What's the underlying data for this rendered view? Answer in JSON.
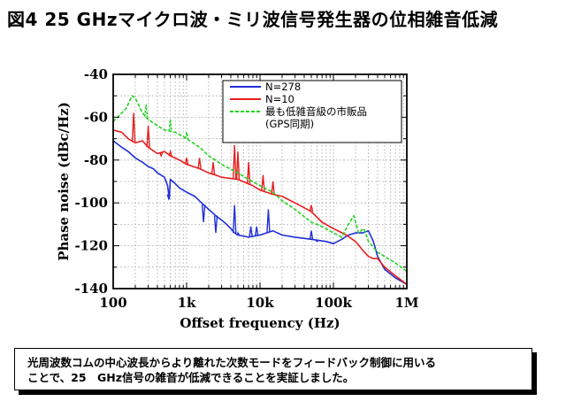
{
  "figure_title": "図4 25 GHzマイクロ波・ミリ波信号発生器の位相雑音低減",
  "caption": [
    "光周波数コムの中心波長からより離れた次数モードをフィードバック制御に用いる",
    "ことで、25　GHz信号の雑音が低減できることを実証しました。"
  ],
  "chart_data": {
    "type": "line",
    "xlabel": "Offset frequency (Hz)",
    "ylabel": "Phase noise (dBc/Hz)",
    "xscale": "log",
    "xlim": [
      100,
      1000000
    ],
    "ylim": [
      -140,
      -40
    ],
    "xticks": [
      100,
      1000,
      10000,
      100000,
      1000000
    ],
    "xtick_labels": [
      "100",
      "1k",
      "10k",
      "100k",
      "1M"
    ],
    "yticks": [
      -40,
      -60,
      -80,
      -100,
      -120,
      -140
    ],
    "ytick_labels": [
      "-40",
      "-60",
      "-80",
      "-100",
      "-120",
      "-140"
    ],
    "grid": true,
    "legend_position": "top-right",
    "series": [
      {
        "name": "N=278",
        "legend_lines": [
          "N=278"
        ],
        "color": "#1f2fd8",
        "dash": "solid",
        "points": [
          [
            100,
            -71
          ],
          [
            130,
            -74
          ],
          [
            160,
            -76
          ],
          [
            200,
            -79
          ],
          [
            250,
            -81
          ],
          [
            300,
            -83
          ],
          [
            350,
            -84
          ],
          [
            400,
            -86
          ],
          [
            500,
            -88
          ],
          [
            550,
            -92
          ],
          [
            580,
            -98
          ],
          [
            600,
            -89
          ],
          [
            700,
            -91
          ],
          [
            800,
            -93
          ],
          [
            1000,
            -95
          ],
          [
            1300,
            -97
          ],
          [
            1600,
            -100
          ],
          [
            2000,
            -103
          ],
          [
            2500,
            -106
          ],
          [
            3000,
            -108
          ],
          [
            3500,
            -110
          ],
          [
            4000,
            -112
          ],
          [
            4500,
            -114
          ],
          [
            5000,
            -115
          ],
          [
            7000,
            -116
          ],
          [
            10000,
            -115
          ],
          [
            15000,
            -113
          ],
          [
            20000,
            -115
          ],
          [
            30000,
            -116
          ],
          [
            50000,
            -117
          ],
          [
            80000,
            -118
          ],
          [
            100000,
            -119
          ],
          [
            130000,
            -117
          ],
          [
            160000,
            -115
          ],
          [
            200000,
            -114
          ],
          [
            250000,
            -114
          ],
          [
            300000,
            -113
          ],
          [
            350000,
            -118
          ],
          [
            400000,
            -125
          ],
          [
            500000,
            -131
          ],
          [
            700000,
            -135
          ],
          [
            1000000,
            -138
          ]
        ],
        "spikes": [
          [
            570,
            -98
          ],
          [
            1700,
            -109
          ],
          [
            2500,
            -114
          ],
          [
            4500,
            -101
          ],
          [
            5000,
            -114
          ],
          [
            7500,
            -111
          ],
          [
            9000,
            -111
          ],
          [
            13000,
            -103
          ],
          [
            50000,
            -113
          ],
          [
            60000,
            -118
          ]
        ]
      },
      {
        "name": "N=10",
        "legend_lines": [
          "N=10"
        ],
        "color": "#e81e1e",
        "dash": "solid",
        "points": [
          [
            100,
            -66
          ],
          [
            130,
            -67
          ],
          [
            160,
            -70
          ],
          [
            200,
            -72
          ],
          [
            250,
            -71
          ],
          [
            300,
            -74
          ],
          [
            400,
            -77
          ],
          [
            500,
            -76
          ],
          [
            600,
            -78
          ],
          [
            800,
            -80
          ],
          [
            1000,
            -82
          ],
          [
            1500,
            -84
          ],
          [
            2000,
            -86
          ],
          [
            2500,
            -87
          ],
          [
            3000,
            -88
          ],
          [
            5000,
            -89
          ],
          [
            8000,
            -92
          ],
          [
            10000,
            -94
          ],
          [
            15000,
            -96
          ],
          [
            20000,
            -97
          ],
          [
            30000,
            -100
          ],
          [
            50000,
            -104
          ],
          [
            70000,
            -109
          ],
          [
            100000,
            -112
          ],
          [
            150000,
            -115
          ],
          [
            200000,
            -118
          ],
          [
            250000,
            -122
          ],
          [
            300000,
            -125
          ],
          [
            350000,
            -126
          ],
          [
            400000,
            -126
          ],
          [
            500000,
            -130
          ],
          [
            700000,
            -134
          ],
          [
            1000000,
            -138
          ]
        ],
        "spikes": [
          [
            190,
            -58
          ],
          [
            300,
            -64
          ],
          [
            450,
            -78
          ],
          [
            600,
            -76
          ],
          [
            1000,
            -79
          ],
          [
            1500,
            -79
          ],
          [
            2300,
            -81
          ],
          [
            4500,
            -73
          ],
          [
            5000,
            -76
          ],
          [
            7000,
            -81
          ],
          [
            11000,
            -87
          ],
          [
            15000,
            -90
          ],
          [
            50000,
            -101
          ]
        ]
      },
      {
        "name": "最も低雑音級の市販品 (GPS同期)",
        "legend_lines": [
          "最も低雑音級の市販品",
          "(GPS同期)"
        ],
        "color": "#1ed31e",
        "dash": "dashed",
        "points": [
          [
            100,
            -62
          ],
          [
            150,
            -56
          ],
          [
            180,
            -50
          ],
          [
            200,
            -51
          ],
          [
            250,
            -58
          ],
          [
            300,
            -61
          ],
          [
            400,
            -64
          ],
          [
            500,
            -66
          ],
          [
            700,
            -67
          ],
          [
            1000,
            -70
          ],
          [
            1500,
            -74
          ],
          [
            2000,
            -78
          ],
          [
            3000,
            -82
          ],
          [
            5000,
            -86
          ],
          [
            7000,
            -89
          ],
          [
            10000,
            -92
          ],
          [
            15000,
            -95
          ],
          [
            20000,
            -99
          ],
          [
            30000,
            -103
          ],
          [
            50000,
            -109
          ],
          [
            70000,
            -111
          ],
          [
            100000,
            -114
          ],
          [
            130000,
            -116
          ],
          [
            160000,
            -110
          ],
          [
            190000,
            -106
          ],
          [
            220000,
            -114
          ],
          [
            260000,
            -112
          ],
          [
            300000,
            -118
          ],
          [
            400000,
            -123
          ],
          [
            500000,
            -125
          ],
          [
            700000,
            -128
          ],
          [
            1000000,
            -132
          ]
        ],
        "spikes": [
          [
            280,
            -54
          ],
          [
            600,
            -61
          ],
          [
            1000,
            -67
          ]
        ]
      }
    ]
  }
}
